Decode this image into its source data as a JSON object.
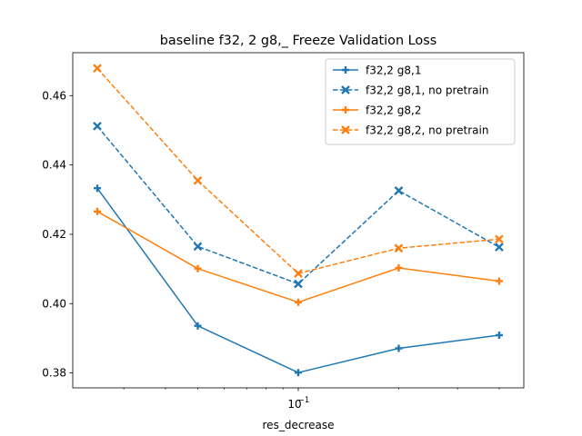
{
  "chart_data": {
    "type": "line",
    "title": "baseline f32, 2 g8,_ Freeze Validation Loss",
    "xlabel": "res_decrease",
    "ylabel": "",
    "xscale": "log",
    "x": [
      0.025,
      0.05,
      0.1,
      0.2,
      0.4
    ],
    "xlim": [
      0.0211,
      0.474
    ],
    "ylim": [
      0.3757,
      0.4724
    ],
    "x_major_ticks": [
      {
        "value": 0.1,
        "label": "10"
      }
    ],
    "x_major_tick_exponent": "−1",
    "x_minor_ticks": [
      0.03,
      0.04,
      0.05,
      0.06,
      0.07,
      0.08,
      0.09,
      0.2,
      0.3,
      0.4
    ],
    "y_ticks": [
      {
        "value": 0.38,
        "label": "0.38"
      },
      {
        "value": 0.4,
        "label": "0.40"
      },
      {
        "value": 0.42,
        "label": "0.42"
      },
      {
        "value": 0.44,
        "label": "0.44"
      },
      {
        "value": 0.46,
        "label": "0.46"
      }
    ],
    "grid": false,
    "legend_position": "upper right",
    "series": [
      {
        "name": "f32,2 g8,1",
        "color": "#1f77b4",
        "linestyle": "solid",
        "marker": "plus",
        "values": [
          0.4333,
          0.3936,
          0.3801,
          0.3871,
          0.3909
        ]
      },
      {
        "name": "f32,2 g8,1, no pretrain",
        "color": "#1f77b4",
        "linestyle": "dashed",
        "marker": "x",
        "values": [
          0.4512,
          0.4165,
          0.4057,
          0.4326,
          0.4163
        ]
      },
      {
        "name": "f32,2 g8,2",
        "color": "#ff7f0e",
        "linestyle": "solid",
        "marker": "plus",
        "values": [
          0.4266,
          0.4101,
          0.4004,
          0.4103,
          0.4065
        ]
      },
      {
        "name": "f32,2 g8,2, no pretrain",
        "color": "#ff7f0e",
        "linestyle": "dashed",
        "marker": "x",
        "values": [
          0.4679,
          0.4355,
          0.4087,
          0.416,
          0.4186
        ]
      }
    ]
  }
}
